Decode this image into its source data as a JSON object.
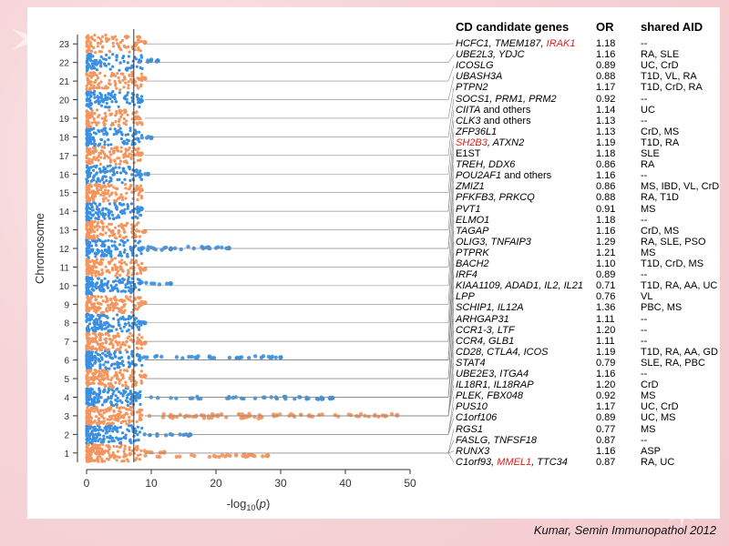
{
  "colors": {
    "orange": "#f4955e",
    "blue": "#3b8fe0",
    "highlight": "#e0201b"
  },
  "table": {
    "headers": {
      "gene": "CD candidate genes",
      "or": "OR",
      "aid": "shared AID"
    },
    "rows": [
      {
        "gene": [
          [
            "HCFC1, TMEM187, ",
            false
          ],
          [
            "IRAK1",
            true
          ]
        ],
        "or": "1.18",
        "aid": "--"
      },
      {
        "gene": [
          [
            "UBE2L3, YDJC",
            false
          ]
        ],
        "or": "1.16",
        "aid": "RA, SLE"
      },
      {
        "gene": [
          [
            "ICOSLG",
            false
          ]
        ],
        "or": "0.89",
        "aid": "UC, CrD"
      },
      {
        "gene": [
          [
            "UBASH3A",
            false
          ]
        ],
        "or": "0.88",
        "aid": "T1D, VL, RA"
      },
      {
        "gene": [
          [
            "PTPN2",
            false
          ]
        ],
        "or": "1.17",
        "aid": "T1D, CrD, RA"
      },
      {
        "gene": [
          [
            "SOCS1, PRM1, PRM2",
            false
          ]
        ],
        "or": "0.92",
        "aid": "--"
      },
      {
        "gene": [
          [
            "CIITA",
            false
          ],
          [
            " and others",
            false,
            "upright"
          ]
        ],
        "or": "1.14",
        "aid": "UC"
      },
      {
        "gene": [
          [
            "CLK3",
            false
          ],
          [
            " and others",
            false,
            "upright"
          ]
        ],
        "or": "1.13",
        "aid": "--"
      },
      {
        "gene": [
          [
            "ZFP36L1",
            false
          ]
        ],
        "or": "1.13",
        "aid": "CrD, MS"
      },
      {
        "gene": [
          [
            "SH2B3",
            true
          ],
          [
            ", ATXN2",
            false
          ]
        ],
        "or": "1.19",
        "aid": "T1D, RA"
      },
      {
        "gene": [
          [
            "E1ST",
            false,
            "upright"
          ]
        ],
        "or": "1.18",
        "aid": "SLE"
      },
      {
        "gene": [
          [
            "TREH, DDX6",
            false
          ]
        ],
        "or": "0.86",
        "aid": "RA"
      },
      {
        "gene": [
          [
            "POU2AF1",
            false
          ],
          [
            " and others",
            false,
            "upright"
          ]
        ],
        "or": "1.16",
        "aid": "--"
      },
      {
        "gene": [
          [
            "ZMIZ1",
            false
          ]
        ],
        "or": "0.86",
        "aid": "MS, IBD, VL, CrD"
      },
      {
        "gene": [
          [
            "PFKFB3, PRKCQ",
            false
          ]
        ],
        "or": "0.88",
        "aid": "RA, T1D"
      },
      {
        "gene": [
          [
            "PVT1",
            false
          ]
        ],
        "or": "0.91",
        "aid": "MS"
      },
      {
        "gene": [
          [
            "ELMO1",
            false
          ]
        ],
        "or": "1.18",
        "aid": "--"
      },
      {
        "gene": [
          [
            "TAGAP",
            false
          ]
        ],
        "or": "1.16",
        "aid": "CrD, MS"
      },
      {
        "gene": [
          [
            "OLIG3, TNFAIP3",
            false
          ]
        ],
        "or": "1.29",
        "aid": "RA, SLE, PSO"
      },
      {
        "gene": [
          [
            "PTPRK",
            false
          ]
        ],
        "or": "1.21",
        "aid": "MS"
      },
      {
        "gene": [
          [
            "BACH2",
            false
          ]
        ],
        "or": "1.10",
        "aid": "T1D, CrD, MS"
      },
      {
        "gene": [
          [
            "IRF4",
            false
          ]
        ],
        "or": "0.89",
        "aid": "--"
      },
      {
        "gene": [
          [
            "KIAA1109, ADAD1, IL2, IL21",
            false
          ]
        ],
        "or": "0.71",
        "aid": "T1D, RA, AA, UC"
      },
      {
        "gene": [
          [
            "LPP",
            false
          ]
        ],
        "or": "0.76",
        "aid": "VL"
      },
      {
        "gene": [
          [
            "SCHIP1, IL12A",
            false
          ]
        ],
        "or": "1.36",
        "aid": "PBC, MS"
      },
      {
        "gene": [
          [
            "ARHGAP31",
            false
          ]
        ],
        "or": "1.11",
        "aid": "--"
      },
      {
        "gene": [
          [
            "CCR1-3, LTF",
            false
          ]
        ],
        "or": "1.20",
        "aid": "--"
      },
      {
        "gene": [
          [
            "CCR4, GLB1",
            false
          ]
        ],
        "or": "1.11",
        "aid": "--"
      },
      {
        "gene": [
          [
            "CD28, CTLA4, ICOS",
            false
          ]
        ],
        "or": "1.19",
        "aid": "T1D, RA, AA, GD"
      },
      {
        "gene": [
          [
            "STAT4",
            false
          ]
        ],
        "or": "0.79",
        "aid": "SLE, RA, PBC"
      },
      {
        "gene": [
          [
            "UBE2E3, ITGA4",
            false
          ]
        ],
        "or": "1.16",
        "aid": "--"
      },
      {
        "gene": [
          [
            "IL18R1, IL18RAP",
            false
          ]
        ],
        "or": "1.20",
        "aid": "CrD"
      },
      {
        "gene": [
          [
            "PLEK, FBX048",
            false
          ]
        ],
        "or": "0.92",
        "aid": "MS"
      },
      {
        "gene": [
          [
            "PUS10",
            false
          ]
        ],
        "or": "1.17",
        "aid": "UC, CrD"
      },
      {
        "gene": [
          [
            "C1orf106",
            false
          ]
        ],
        "or": "0.89",
        "aid": "UC, MS"
      },
      {
        "gene": [
          [
            "RGS1",
            false
          ]
        ],
        "or": "0.77",
        "aid": "MS"
      },
      {
        "gene": [
          [
            "FASLG, TNFSF18",
            false
          ]
        ],
        "or": "0.87",
        "aid": "--"
      },
      {
        "gene": [
          [
            "RUNX3",
            false
          ]
        ],
        "or": "1.16",
        "aid": "ASP"
      },
      {
        "gene": [
          [
            "C1orf93, ",
            false
          ],
          [
            "MMEL1",
            true
          ],
          [
            ", TTC34",
            false
          ]
        ],
        "or": "0.87",
        "aid": "RA, UC"
      }
    ]
  },
  "citation": "Kumar, Semin Immunopathol 2012",
  "chart_data": {
    "type": "scatter",
    "orientation": "horizontal",
    "ylabel": "Chromosome",
    "xlabel": "-log10(p)",
    "xlim": [
      0,
      50
    ],
    "xticks": [
      0,
      10,
      20,
      30,
      40,
      50
    ],
    "significance_threshold": 7.3,
    "chromosome_labels": [
      "1",
      "2",
      "3",
      "4",
      "5",
      "6",
      "7",
      "8",
      "9",
      "10",
      "11",
      "12",
      "13",
      "14",
      "15",
      "16",
      "17",
      "18",
      "19",
      "20",
      "21",
      "22",
      "23"
    ],
    "loci": [
      {
        "chr": 23,
        "top_x": 9
      },
      {
        "chr": 22,
        "top_x": 11
      },
      {
        "chr": 21,
        "top_x": 9
      },
      {
        "chr": 20,
        "top_x": 8.5
      },
      {
        "chr": 19,
        "top_x": 8
      },
      {
        "chr": 18,
        "top_x": 10
      },
      {
        "chr": 17,
        "top_x": 8.5
      },
      {
        "chr": 16,
        "top_x": 9.5
      },
      {
        "chr": 15,
        "top_x": 8.5
      },
      {
        "chr": 14,
        "top_x": 8.5
      },
      {
        "chr": 13,
        "top_x": 9
      },
      {
        "chr": 12,
        "top_x": 22
      },
      {
        "chr": 12,
        "top_x": 13
      },
      {
        "chr": 11,
        "top_x": 9
      },
      {
        "chr": 10,
        "top_x": 13
      },
      {
        "chr": 9,
        "top_x": 9
      },
      {
        "chr": 8,
        "top_x": 9
      },
      {
        "chr": 7,
        "top_x": 9
      },
      {
        "chr": 6,
        "top_x": 30
      },
      {
        "chr": 5,
        "top_x": 9
      },
      {
        "chr": 4,
        "top_x": 38
      },
      {
        "chr": 3,
        "top_x": 48
      },
      {
        "chr": 3,
        "top_x": 27
      },
      {
        "chr": 2,
        "top_x": 16
      },
      {
        "chr": 1,
        "top_x": 28
      },
      {
        "chr": 1,
        "top_x": 12
      }
    ]
  }
}
